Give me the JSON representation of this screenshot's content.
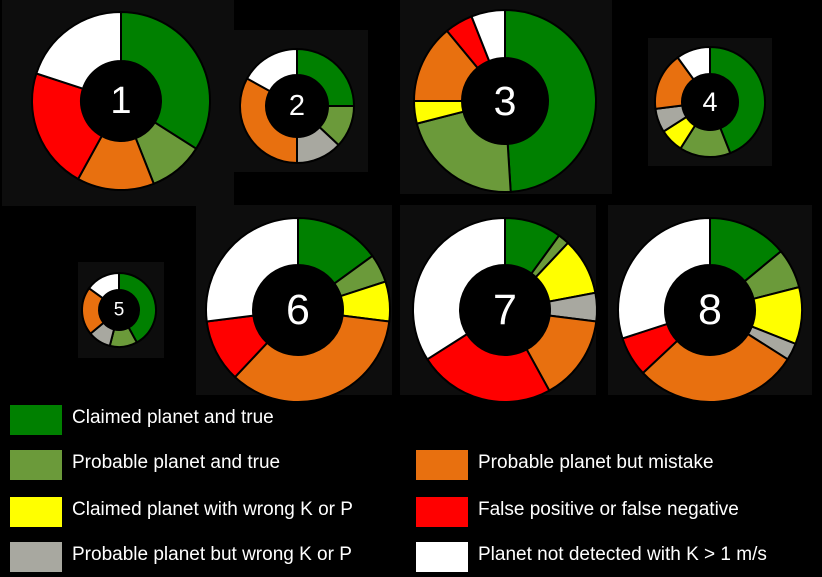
{
  "chart_data": {
    "type": "donut",
    "categories": [
      "Claimed planet and true",
      "Probable planet and true",
      "Probable planet but mistake",
      "Claimed planet with wrong K or P",
      "False positive or false negative",
      "Probable planet but wrong K or P",
      "Planet not detected with K > 1 m/s"
    ],
    "colors": {
      "claimed_true": "#008000",
      "probable_true": "#6b9a3a",
      "claimed_wrong": "#ffff00",
      "probable_wrong": "#a8a8a0",
      "probable_mistake": "#e8700f",
      "false_pos_neg": "#ff0000",
      "not_detected": "#ffffff"
    },
    "charts": [
      {
        "label": "1",
        "slices": [
          {
            "cat": "claimed_true",
            "value": 34
          },
          {
            "cat": "probable_true",
            "value": 10
          },
          {
            "cat": "probable_mistake",
            "value": 14
          },
          {
            "cat": "false_pos_neg",
            "value": 22
          },
          {
            "cat": "not_detected",
            "value": 20
          }
        ]
      },
      {
        "label": "2",
        "slices": [
          {
            "cat": "claimed_true",
            "value": 25
          },
          {
            "cat": "probable_true",
            "value": 12
          },
          {
            "cat": "probable_wrong",
            "value": 13
          },
          {
            "cat": "probable_mistake",
            "value": 33
          },
          {
            "cat": "not_detected",
            "value": 17
          }
        ]
      },
      {
        "label": "3",
        "slices": [
          {
            "cat": "claimed_true",
            "value": 49
          },
          {
            "cat": "probable_true",
            "value": 22
          },
          {
            "cat": "claimed_wrong",
            "value": 4
          },
          {
            "cat": "probable_mistake",
            "value": 14
          },
          {
            "cat": "false_pos_neg",
            "value": 5
          },
          {
            "cat": "not_detected",
            "value": 6
          }
        ]
      },
      {
        "label": "4",
        "slices": [
          {
            "cat": "claimed_true",
            "value": 44
          },
          {
            "cat": "probable_true",
            "value": 15
          },
          {
            "cat": "claimed_wrong",
            "value": 7
          },
          {
            "cat": "probable_wrong",
            "value": 7
          },
          {
            "cat": "probable_mistake",
            "value": 17
          },
          {
            "cat": "not_detected",
            "value": 10
          }
        ]
      },
      {
        "label": "5",
        "slices": [
          {
            "cat": "claimed_true",
            "value": 42
          },
          {
            "cat": "probable_true",
            "value": 12
          },
          {
            "cat": "probable_wrong",
            "value": 10
          },
          {
            "cat": "probable_mistake",
            "value": 21
          },
          {
            "cat": "not_detected",
            "value": 15
          }
        ]
      },
      {
        "label": "6",
        "slices": [
          {
            "cat": "claimed_true",
            "value": 15
          },
          {
            "cat": "probable_true",
            "value": 5
          },
          {
            "cat": "claimed_wrong",
            "value": 7
          },
          {
            "cat": "probable_mistake",
            "value": 35
          },
          {
            "cat": "false_pos_neg",
            "value": 11
          },
          {
            "cat": "not_detected",
            "value": 27
          }
        ]
      },
      {
        "label": "7",
        "slices": [
          {
            "cat": "claimed_true",
            "value": 10
          },
          {
            "cat": "probable_true",
            "value": 2
          },
          {
            "cat": "claimed_wrong",
            "value": 10
          },
          {
            "cat": "probable_wrong",
            "value": 5
          },
          {
            "cat": "probable_mistake",
            "value": 15
          },
          {
            "cat": "false_pos_neg",
            "value": 24
          },
          {
            "cat": "not_detected",
            "value": 34
          }
        ]
      },
      {
        "label": "8",
        "slices": [
          {
            "cat": "claimed_true",
            "value": 14
          },
          {
            "cat": "probable_true",
            "value": 7
          },
          {
            "cat": "claimed_wrong",
            "value": 10
          },
          {
            "cat": "probable_wrong",
            "value": 3
          },
          {
            "cat": "probable_mistake",
            "value": 29
          },
          {
            "cat": "false_pos_neg",
            "value": 7
          },
          {
            "cat": "not_detected",
            "value": 30
          }
        ]
      }
    ]
  },
  "legend": [
    {
      "key": "claimed_true",
      "label": "Claimed planet and true"
    },
    {
      "key": "probable_true",
      "label": "Probable planet and true"
    },
    {
      "key": "claimed_wrong",
      "label": "Claimed planet with wrong K or P"
    },
    {
      "key": "probable_wrong",
      "label": "Probable planet but wrong K or P"
    },
    {
      "key": "probable_mistake",
      "label": "Probable planet but mistake"
    },
    {
      "key": "false_pos_neg",
      "label": "False positive or false negative"
    },
    {
      "key": "not_detected",
      "label": "Planet not detected with K > 1 m/s"
    }
  ]
}
